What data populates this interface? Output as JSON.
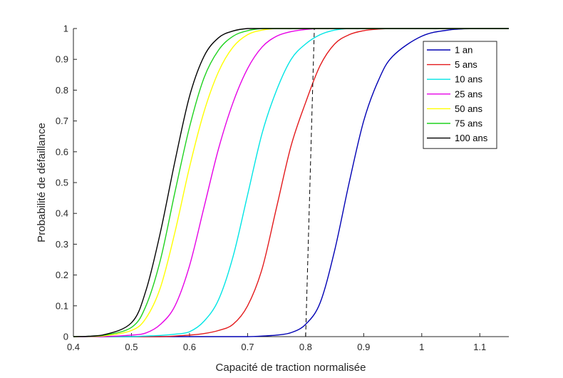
{
  "chart_data": {
    "type": "line",
    "xlabel": "Capacité de traction normalisée",
    "ylabel": "Probabilité de défaillance",
    "xlim": [
      0.4,
      1.15
    ],
    "ylim": [
      0,
      1
    ],
    "xticks": [
      "0.4",
      "0.5",
      "0.6",
      "0.7",
      "0.8",
      "0.9",
      "1",
      "1.1"
    ],
    "yticks": [
      "0",
      "0.1",
      "0.2",
      "0.3",
      "0.4",
      "0.5",
      "0.6",
      "0.7",
      "0.8",
      "0.9",
      "1"
    ],
    "grid": false,
    "legend_position": "top-right",
    "x": [
      0.4,
      0.45,
      0.5,
      0.525,
      0.55,
      0.575,
      0.6,
      0.625,
      0.65,
      0.675,
      0.7,
      0.725,
      0.75,
      0.775,
      0.8,
      0.825,
      0.85,
      0.875,
      0.9,
      0.925,
      0.95,
      1.0,
      1.05,
      1.1,
      1.15
    ],
    "series": [
      {
        "name": "1 an",
        "color": "#0000b4",
        "values": [
          0,
          0,
          0,
          0,
          0,
          0,
          0,
          0,
          0,
          0,
          0,
          0.002,
          0.005,
          0.013,
          0.04,
          0.11,
          0.28,
          0.5,
          0.7,
          0.83,
          0.91,
          0.975,
          0.996,
          1.0,
          1.0
        ]
      },
      {
        "name": "5 ans",
        "color": "#e31a1c",
        "values": [
          0,
          0,
          0,
          0,
          0,
          0.002,
          0.005,
          0.01,
          0.02,
          0.04,
          0.1,
          0.22,
          0.42,
          0.62,
          0.76,
          0.88,
          0.95,
          0.98,
          0.993,
          0.998,
          1.0,
          1.0,
          1.0,
          1.0,
          1.0
        ]
      },
      {
        "name": "10 ans",
        "color": "#00e5e5",
        "values": [
          0,
          0,
          0,
          0.002,
          0.004,
          0.008,
          0.016,
          0.05,
          0.12,
          0.26,
          0.46,
          0.66,
          0.8,
          0.9,
          0.95,
          0.98,
          0.995,
          1.0,
          1.0,
          1.0,
          1.0,
          1.0,
          1.0,
          1.0,
          1.0
        ]
      },
      {
        "name": "25 ans",
        "color": "#e600e6",
        "values": [
          0,
          0,
          0.005,
          0.012,
          0.04,
          0.1,
          0.23,
          0.42,
          0.61,
          0.76,
          0.87,
          0.94,
          0.975,
          0.99,
          0.997,
          1.0,
          1.0,
          1.0,
          1.0,
          1.0,
          1.0,
          1.0,
          1.0,
          1.0,
          1.0
        ]
      },
      {
        "name": "50 ans",
        "color": "#ffff00",
        "values": [
          0,
          0.002,
          0.02,
          0.06,
          0.16,
          0.34,
          0.55,
          0.73,
          0.86,
          0.94,
          0.98,
          0.995,
          1.0,
          1.0,
          1.0,
          1.0,
          1.0,
          1.0,
          1.0,
          1.0,
          1.0,
          1.0,
          1.0,
          1.0,
          1.0
        ]
      },
      {
        "name": "75 ans",
        "color": "#1ed21e",
        "values": [
          0,
          0.004,
          0.03,
          0.1,
          0.25,
          0.47,
          0.68,
          0.84,
          0.93,
          0.975,
          0.993,
          1.0,
          1.0,
          1.0,
          1.0,
          1.0,
          1.0,
          1.0,
          1.0,
          1.0,
          1.0,
          1.0,
          1.0,
          1.0,
          1.0
        ]
      },
      {
        "name": "100 ans",
        "color": "#000000",
        "values": [
          0,
          0.005,
          0.045,
          0.15,
          0.34,
          0.57,
          0.78,
          0.91,
          0.97,
          0.992,
          1.0,
          1.0,
          1.0,
          1.0,
          1.0,
          1.0,
          1.0,
          1.0,
          1.0,
          1.0,
          1.0,
          1.0,
          1.0,
          1.0,
          1.0
        ]
      }
    ],
    "reference_line": {
      "style": "dashed",
      "color": "#000000",
      "points": [
        [
          0.8,
          0
        ],
        [
          0.815,
          1
        ]
      ]
    }
  }
}
